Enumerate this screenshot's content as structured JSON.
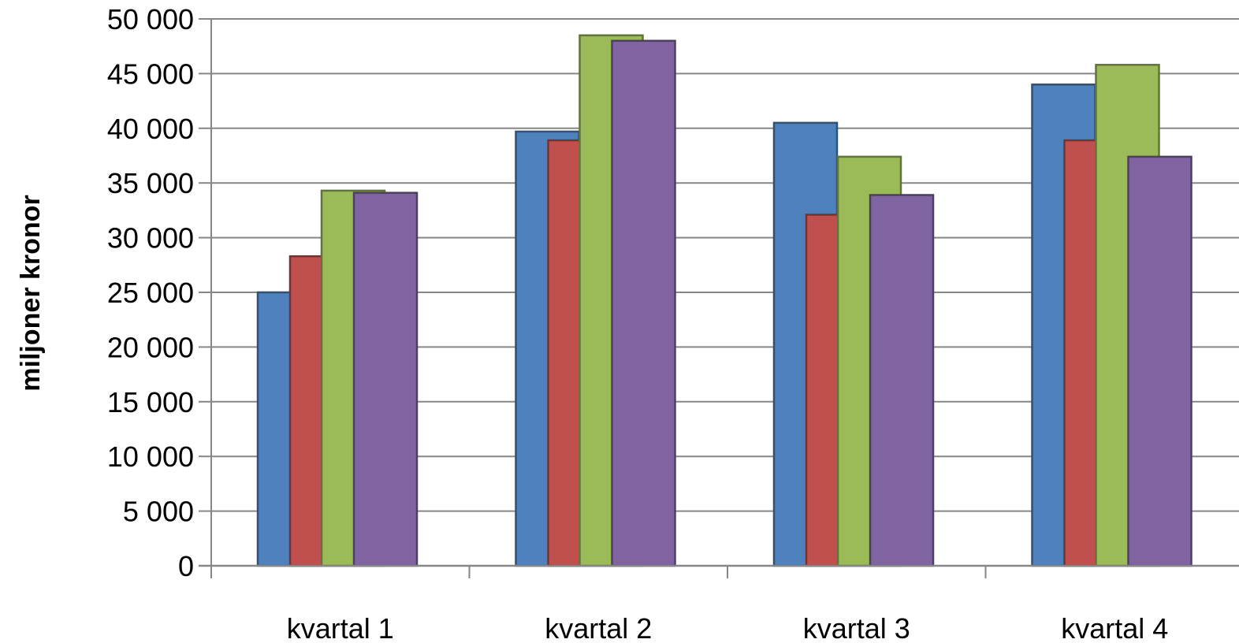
{
  "chart_data": {
    "type": "bar",
    "title": "",
    "xlabel": "",
    "ylabel": "miljoner kronor",
    "ylim": [
      0,
      50000
    ],
    "yticks": [
      0,
      5000,
      10000,
      15000,
      20000,
      25000,
      30000,
      35000,
      40000,
      45000,
      50000
    ],
    "ytick_labels": [
      "0",
      "5 000",
      "10 000",
      "15 000",
      "20 000",
      "25 000",
      "30 000",
      "35 000",
      "40 000",
      "45 000",
      "50 000"
    ],
    "categories": [
      "kvartal 1",
      "kvartal 2",
      "kvartal 3",
      "kvartal 4"
    ],
    "grid": true,
    "legend": "none",
    "series": [
      {
        "color": "#4F81BD",
        "values": [
          25000,
          39700,
          40500,
          44000
        ]
      },
      {
        "color": "#C0504D",
        "values": [
          28300,
          38900,
          32100,
          38900
        ]
      },
      {
        "color": "#9BBB59",
        "values": [
          34300,
          48500,
          37400,
          45800
        ]
      },
      {
        "color": "#8064A2",
        "values": [
          34100,
          48000,
          33900,
          37400
        ]
      }
    ]
  }
}
